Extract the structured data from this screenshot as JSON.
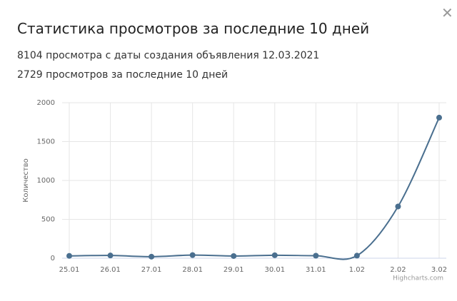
{
  "header": {
    "title": "Статистика просмотров за последние 10 дней"
  },
  "stats": [
    "8104 просмотра с даты создания объявления 12.03.2021",
    "2729 просмотров за последние 10 дней"
  ],
  "chart_data": {
    "type": "line",
    "y_label": "Количество",
    "credits": "Highcharts.com",
    "categories": [
      "25.01",
      "26.01",
      "27.01",
      "28.01",
      "29.01",
      "30.01",
      "31.01",
      "1.02",
      "2.02",
      "3.02"
    ],
    "values": [
      30,
      35,
      20,
      40,
      28,
      38,
      32,
      33,
      665,
      1808
    ],
    "color": "#4a6f8f",
    "ylim": [
      0,
      2000
    ],
    "yticks": [
      0,
      500,
      1000,
      1500,
      2000
    ],
    "grid": true
  }
}
